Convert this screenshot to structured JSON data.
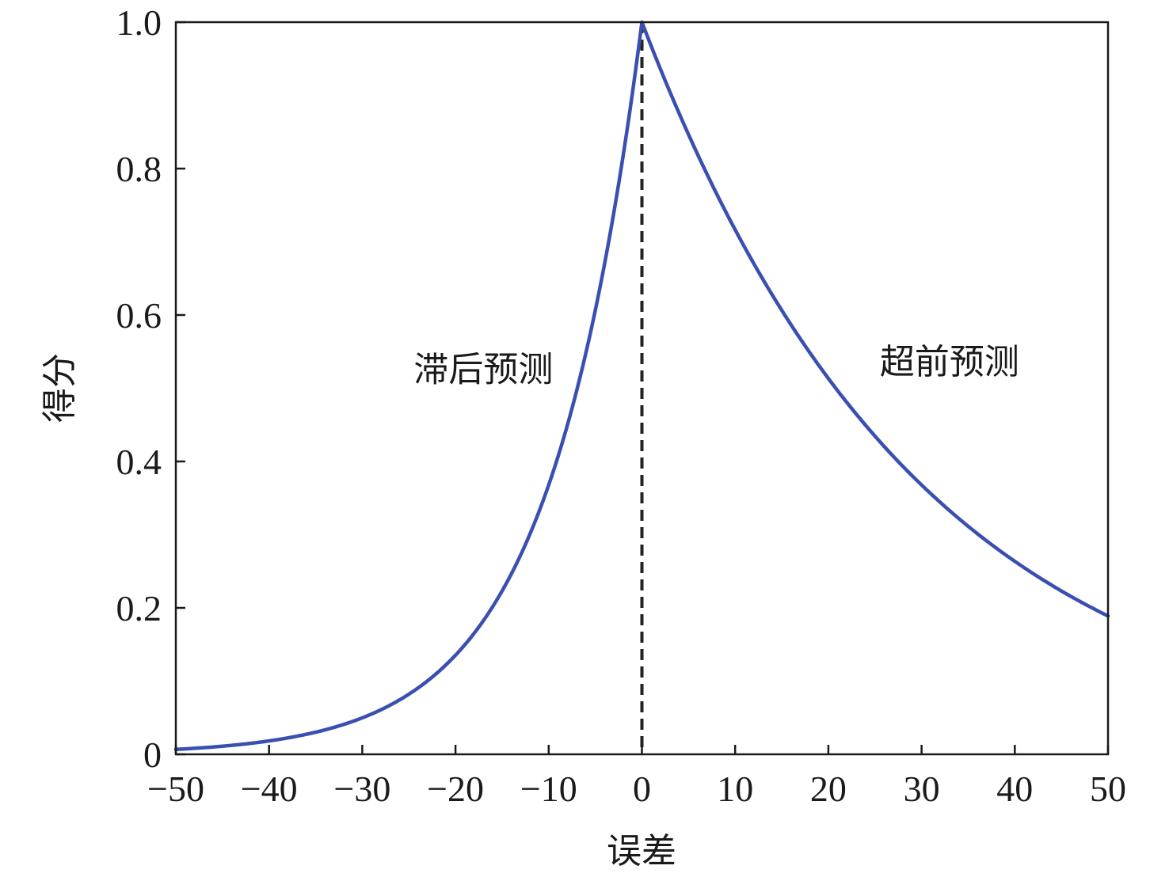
{
  "chart_data": {
    "type": "line",
    "title": "",
    "xlabel": "误差",
    "ylabel": "得分",
    "xlim": [
      -50,
      50
    ],
    "ylim": [
      0,
      1
    ],
    "x_ticks": [
      -50,
      -40,
      -30,
      -20,
      -10,
      0,
      10,
      20,
      30,
      40,
      50
    ],
    "x_tick_labels": [
      "−50",
      "−40",
      "−30",
      "−20",
      "−10",
      "0",
      "10",
      "20",
      "30",
      "40",
      "50"
    ],
    "y_ticks": [
      0,
      0.2,
      0.4,
      0.6,
      0.8,
      1.0
    ],
    "y_tick_labels": [
      "0",
      "0.2",
      "0.4",
      "0.6",
      "0.8",
      "1.0"
    ],
    "grid": false,
    "series": [
      {
        "color": "#3a4fb0",
        "x": [
          -50,
          -45,
          -40,
          -35,
          -30,
          -25,
          -20,
          -17.5,
          -15,
          -12.5,
          -10,
          -7.5,
          -5,
          -2.5,
          0,
          2.5,
          5,
          7.5,
          10,
          12.5,
          15,
          17.5,
          20,
          22.5,
          25,
          27.5,
          30,
          32.5,
          35,
          37.5,
          40,
          42.5,
          45,
          47.5,
          50
        ],
        "y": [
          0.0067,
          0.0111,
          0.0183,
          0.0302,
          0.0498,
          0.0821,
          0.1353,
          0.1738,
          0.2231,
          0.2865,
          0.3679,
          0.4724,
          0.6065,
          0.7788,
          1.0,
          0.92,
          0.8465,
          0.7788,
          0.7165,
          0.6592,
          0.6065,
          0.558,
          0.5134,
          0.4724,
          0.4346,
          0.3998,
          0.3679,
          0.3385,
          0.3114,
          0.2865,
          0.2636,
          0.2425,
          0.2231,
          0.2053,
          0.1889
        ]
      }
    ],
    "reference_line": {
      "x": 0,
      "style": "dashed",
      "color": "#222222"
    },
    "annotations": [
      {
        "text": "滞后预测",
        "x": -17,
        "y": 0.51
      },
      {
        "text": "超前预测",
        "x": 33,
        "y": 0.52
      }
    ]
  }
}
